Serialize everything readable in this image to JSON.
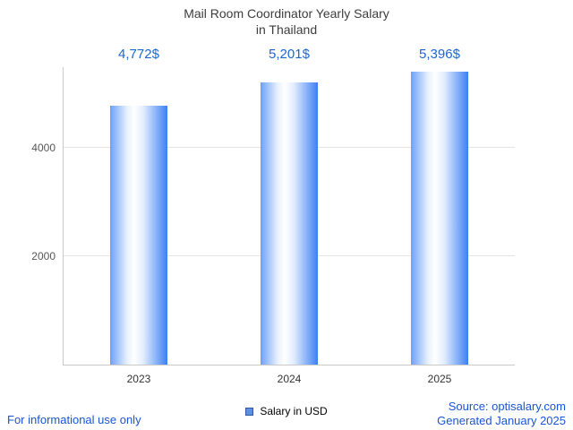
{
  "title": {
    "line1": "Mail Room Coordinator Yearly Salary",
    "line2": "in Thailand"
  },
  "chart_data": {
    "type": "bar",
    "categories": [
      "2023",
      "2024",
      "2025"
    ],
    "values": [
      4772,
      5201,
      5396
    ],
    "value_labels": [
      "4,772$",
      "5,201$",
      "5,396$"
    ],
    "title": "Mail Room Coordinator Yearly Salary in Thailand",
    "xlabel": "",
    "ylabel": "",
    "ylim": [
      0,
      5480
    ],
    "yticks": [
      2000,
      4000
    ],
    "grid": true,
    "legend_position": "bottom",
    "legend_label": "Salary in USD",
    "bar_edge_color": "#3f7ef5",
    "bar_center_color": "#ffffff"
  },
  "footer": {
    "disclaimer": "For informational use only",
    "source": "Source: optisalary.com",
    "generated": "Generated January 2025"
  },
  "colors": {
    "value_label_text": "#1967d2",
    "footer_text": "#1a55d6",
    "title_text": "#3d3d3d",
    "axis_line": "#c9c9c9",
    "grid_line": "#e4e4e4",
    "tick_text": "#555555",
    "legend_swatch": "#5e8fe8"
  }
}
